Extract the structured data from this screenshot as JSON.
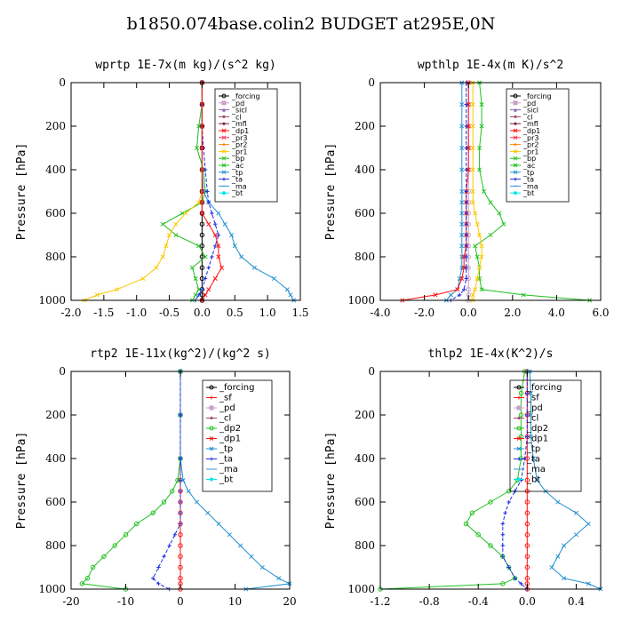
{
  "figure": {
    "title": "b1850.074base.colin2  BUDGET at295E,0N"
  },
  "colors": {
    "forcing": "#000000",
    "pd": "#c8a0c8",
    "sicl": "#8a60b0",
    "cl": "#a04070",
    "mfl": "#7a1840",
    "dp1": "#ff1010",
    "dp2": "#20c020",
    "pr3": "#ff3050",
    "pr2": "#ff8000",
    "pr1": "#f8c800",
    "bp": "#20c020",
    "ac": "#20c020",
    "tp": "#2090d0",
    "ta": "#2030e0",
    "ma": "#3090e0",
    "bt": "#00e8e8",
    "sf": "#ff1010"
  },
  "chart_data": [
    {
      "type": "line",
      "title": "wprtp   1E-7x(m kg)/(s^2 kg)",
      "ylabel": "Pressure [hPa]",
      "xlim": [
        -2.0,
        1.5
      ],
      "ylim": [
        1000,
        0
      ],
      "xticks": [
        "-2.0",
        "-1.5",
        "-1.0",
        "-0.5",
        "0.0",
        "0.5",
        "1.0",
        "1.5"
      ],
      "yticks": [
        "0",
        "200",
        "400",
        "600",
        "800",
        "1000"
      ],
      "legend_position": "top-right",
      "legend": [
        "_forcing",
        "_pd",
        "_sicl",
        "_cl",
        "_mfl",
        "_dp1",
        "_pr3",
        "_pr2",
        "_pr1",
        "_bp",
        "_ac",
        "_tp",
        "_ta",
        "_ma",
        "_bt"
      ],
      "y": [
        0,
        100,
        200,
        300,
        400,
        500,
        550,
        600,
        650,
        700,
        750,
        800,
        850,
        900,
        950,
        975,
        1000
      ],
      "series": [
        {
          "name": "_forcing",
          "color": "#000000",
          "values": [
            0,
            0,
            0,
            0,
            0,
            0,
            0,
            0,
            0,
            0,
            0,
            0,
            0,
            0,
            0,
            0,
            0
          ]
        },
        {
          "name": "_ac",
          "color": "#20c020",
          "values": [
            0,
            0,
            -0.05,
            -0.08,
            0.02,
            0.05,
            0.0,
            -0.3,
            -0.6,
            -0.4,
            -0.05,
            0.05,
            -0.15,
            -0.1,
            -0.05,
            -0.1,
            -0.15
          ]
        },
        {
          "name": "_pr1",
          "color": "#f8c800",
          "values": [
            0,
            0,
            0,
            0,
            0,
            0,
            -0.05,
            -0.25,
            -0.4,
            -0.5,
            -0.55,
            -0.6,
            -0.7,
            -0.9,
            -1.3,
            -1.6,
            -1.8
          ]
        },
        {
          "name": "_tp",
          "color": "#2090d0",
          "values": [
            0,
            0,
            0,
            0,
            0,
            0.02,
            0.1,
            0.25,
            0.35,
            0.45,
            0.5,
            0.6,
            0.8,
            1.1,
            1.3,
            1.35,
            1.4
          ]
        },
        {
          "name": "_ta",
          "color": "#2030e0",
          "values": [
            0,
            0,
            0,
            0.02,
            0.05,
            0.08,
            0.1,
            0.15,
            0.2,
            0.25,
            0.2,
            0.15,
            0.1,
            0.05,
            0.0,
            -0.05,
            -0.1
          ]
        },
        {
          "name": "_dp1",
          "color": "#ff1010",
          "values": [
            0,
            0,
            0,
            0,
            0,
            0,
            0,
            0,
            0.1,
            0.2,
            0.25,
            0.25,
            0.3,
            0.2,
            0.1,
            0.05,
            0.0
          ]
        }
      ]
    },
    {
      "type": "line",
      "title": "wpthlp   1E-4x(m K)/s^2",
      "ylabel": "Pressure [hPa]",
      "xlim": [
        -4.0,
        6.0
      ],
      "ylim": [
        1000,
        0
      ],
      "xticks": [
        "-4.0",
        "-2.0",
        "0.0",
        "2.0",
        "4.0",
        "6.0"
      ],
      "yticks": [
        "0",
        "200",
        "400",
        "600",
        "800",
        "1000"
      ],
      "legend_position": "top-right",
      "legend": [
        "_forcing",
        "_pd",
        "_sicl",
        "_cl",
        "_mfl",
        "_dp1",
        "_pr3",
        "_pr2",
        "_pr1",
        "_bp",
        "_ac",
        "_tp",
        "_ta",
        "_ma",
        "_bt"
      ],
      "y": [
        0,
        100,
        200,
        300,
        400,
        500,
        550,
        600,
        650,
        700,
        750,
        800,
        850,
        900,
        950,
        975,
        1000
      ],
      "series": [
        {
          "name": "_forcing",
          "color": "#c8a0c8",
          "values": [
            0,
            0,
            0,
            0,
            0,
            0,
            0,
            0,
            0,
            0,
            0,
            0,
            0,
            0,
            0,
            0,
            0
          ]
        },
        {
          "name": "_ac",
          "color": "#20c020",
          "values": [
            0.5,
            0.6,
            0.6,
            0.5,
            0.5,
            0.7,
            1.0,
            1.4,
            1.6,
            1.0,
            0.3,
            0.4,
            0.5,
            0.5,
            0.6,
            2.5,
            5.5
          ]
        },
        {
          "name": "_pr1",
          "color": "#f8c800",
          "values": [
            0.2,
            0.2,
            0.2,
            0.2,
            0.2,
            0.2,
            0.2,
            0.3,
            0.4,
            0.5,
            0.6,
            0.6,
            0.5,
            0.4,
            0.3,
            0.2,
            0.2
          ]
        },
        {
          "name": "_tp",
          "color": "#2090d0",
          "values": [
            -0.3,
            -0.3,
            -0.3,
            -0.3,
            -0.3,
            -0.3,
            -0.3,
            -0.3,
            -0.3,
            -0.3,
            -0.3,
            -0.3,
            -0.3,
            -0.4,
            -0.5,
            -0.8,
            -1.0
          ]
        },
        {
          "name": "_dp1",
          "color": "#ff1010",
          "values": [
            0,
            0,
            0,
            0,
            0,
            -0.1,
            -0.1,
            -0.1,
            -0.1,
            -0.1,
            -0.1,
            -0.2,
            -0.2,
            -0.3,
            -0.5,
            -1.5,
            -3.0
          ]
        },
        {
          "name": "_ta",
          "color": "#2030e0",
          "values": [
            -0.1,
            -0.1,
            -0.1,
            -0.1,
            -0.1,
            -0.1,
            -0.1,
            -0.1,
            -0.1,
            -0.1,
            -0.1,
            -0.1,
            -0.1,
            -0.1,
            -0.2,
            -0.4,
            -0.8
          ]
        }
      ]
    },
    {
      "type": "line",
      "title": "rtp2   1E-11x(kg^2)/(kg^2 s)",
      "ylabel": "Pressure [hPa]",
      "xlim": [
        -20,
        20
      ],
      "ylim": [
        1000,
        0
      ],
      "xticks": [
        "-20",
        "-10",
        "0",
        "10",
        "20"
      ],
      "yticks": [
        "0",
        "200",
        "400",
        "600",
        "800",
        "1000"
      ],
      "legend_position": "top-right",
      "legend": [
        "_forcing",
        "_sf",
        "_pd",
        "_cl",
        "_dp2",
        "_dp1",
        "_tp",
        "_ta",
        "_ma",
        "_bt"
      ],
      "y": [
        0,
        200,
        400,
        500,
        550,
        600,
        650,
        700,
        750,
        800,
        850,
        900,
        950,
        975,
        1000
      ],
      "series": [
        {
          "name": "_forcing",
          "color": "#ff1010",
          "values": [
            0,
            0,
            0,
            0,
            0,
            0,
            0,
            0,
            0,
            0,
            0,
            0,
            0,
            0,
            0
          ]
        },
        {
          "name": "_dp2",
          "color": "#20c020",
          "values": [
            0,
            0,
            0,
            -0.5,
            -1.5,
            -3,
            -5,
            -8,
            -10,
            -12,
            -14,
            -16,
            -17,
            -18,
            -10
          ]
        },
        {
          "name": "_tp",
          "color": "#2090d0",
          "values": [
            0,
            0,
            0,
            0.5,
            1.5,
            3,
            5,
            7,
            9,
            11,
            13,
            15,
            18,
            20,
            12
          ]
        },
        {
          "name": "_ta",
          "color": "#2030e0",
          "values": [
            0,
            0,
            0,
            0,
            0,
            0,
            0,
            0,
            -1,
            -2,
            -3,
            -4,
            -5,
            -4,
            -2
          ]
        }
      ]
    },
    {
      "type": "line",
      "title": "thlp2   1E-4x(K^2)/s",
      "ylabel": "Pressure [hPa]",
      "xlim": [
        -1.2,
        0.6
      ],
      "ylim": [
        1000,
        0
      ],
      "xticks": [
        "-1.2",
        "-0.8",
        "-0.4",
        "0.0",
        "0.4"
      ],
      "yticks": [
        "0",
        "200",
        "400",
        "600",
        "800",
        "1000"
      ],
      "legend_position": "top-right",
      "legend": [
        "_forcing",
        "_sf",
        "_pd",
        "_cl",
        "_dp2",
        "_dp1",
        "_tp",
        "_ta",
        "_ma",
        "_bt"
      ],
      "y": [
        0,
        100,
        200,
        300,
        400,
        500,
        550,
        600,
        650,
        700,
        750,
        800,
        850,
        900,
        950,
        975,
        1000
      ],
      "series": [
        {
          "name": "_forcing",
          "color": "#ff1010",
          "values": [
            0,
            0,
            0,
            0,
            0,
            0,
            0,
            0,
            0,
            0,
            0,
            0,
            0,
            0,
            0,
            0,
            0
          ]
        },
        {
          "name": "_dp2",
          "color": "#20c020",
          "values": [
            -0.02,
            -0.05,
            -0.05,
            -0.05,
            -0.05,
            -0.08,
            -0.15,
            -0.3,
            -0.45,
            -0.5,
            -0.4,
            -0.3,
            -0.2,
            -0.15,
            -0.1,
            -0.2,
            -1.2
          ]
        },
        {
          "name": "_tp",
          "color": "#2090d0",
          "values": [
            0.02,
            0.03,
            0.03,
            0.03,
            0.05,
            0.08,
            0.15,
            0.25,
            0.4,
            0.5,
            0.4,
            0.3,
            0.25,
            0.2,
            0.3,
            0.5,
            0.6
          ]
        },
        {
          "name": "_ta",
          "color": "#2030e0",
          "values": [
            0,
            0,
            0,
            0,
            -0.02,
            -0.05,
            -0.1,
            -0.15,
            -0.18,
            -0.2,
            -0.2,
            -0.2,
            -0.2,
            -0.15,
            -0.1,
            -0.05,
            0.0
          ]
        }
      ]
    }
  ]
}
